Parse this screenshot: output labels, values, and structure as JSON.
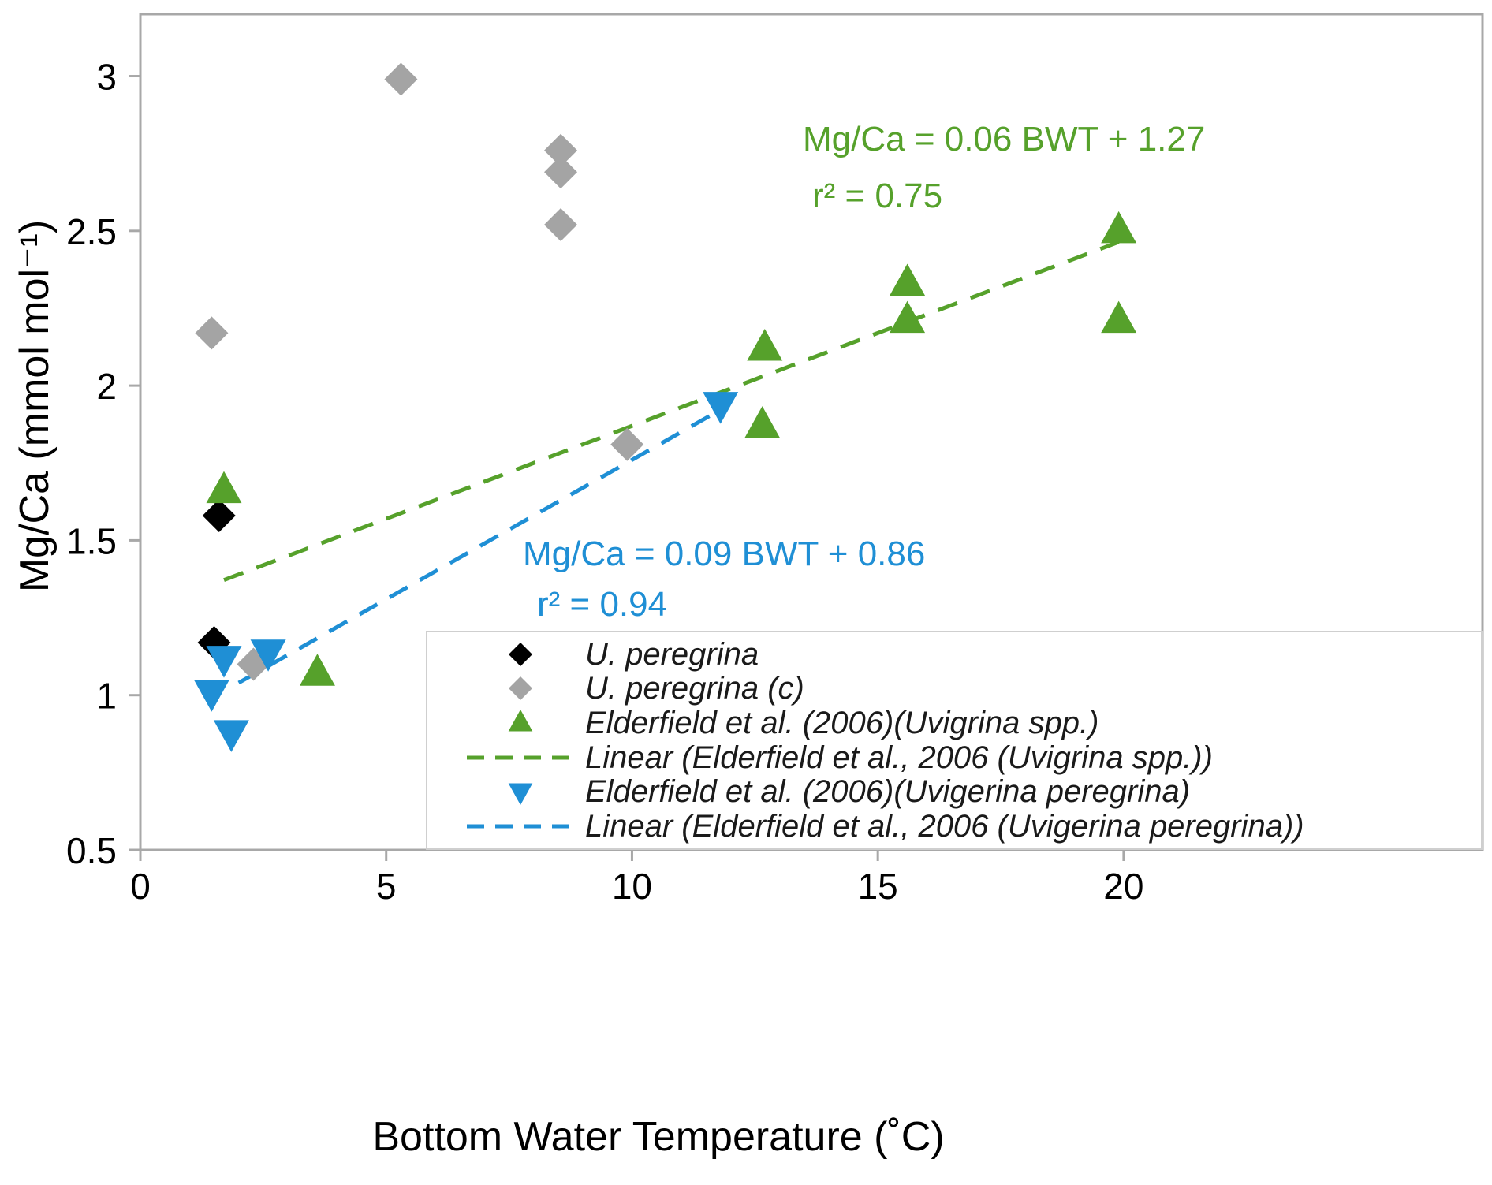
{
  "figure": {
    "background": "#ffffff",
    "axis_color": "#a8a8a8"
  },
  "chart_data": {
    "type": "scatter",
    "title": "",
    "xlabel": "Bottom Water Temperature (˚C)",
    "ylabel": "Mg/Ca (mmol mol⁻¹)",
    "xlim": [
      0,
      27.3
    ],
    "ylim": [
      0.5,
      3.2
    ],
    "xticks": [
      0,
      5,
      10,
      15,
      20
    ],
    "yticks": [
      0.5,
      1,
      1.5,
      2,
      2.5,
      3
    ],
    "grid": false,
    "legend_position": "inside-bottom-right",
    "series": [
      {
        "name": "U. peregrina",
        "marker": "diamond",
        "color": "#000000",
        "points": [
          [
            1.6,
            1.58
          ],
          [
            1.5,
            1.17
          ]
        ]
      },
      {
        "name": "U. peregrina (c)",
        "marker": "diamond",
        "color": "#a4a4a4",
        "points": [
          [
            1.45,
            2.17
          ],
          [
            2.3,
            1.1
          ],
          [
            5.3,
            2.99
          ],
          [
            8.55,
            2.76
          ],
          [
            8.55,
            2.69
          ],
          [
            8.55,
            2.52
          ],
          [
            9.9,
            1.81
          ]
        ]
      },
      {
        "name": "Elderfield et al. (2006)(Uvigrina spp.)",
        "marker": "triangle-up",
        "color": "#56a12b",
        "points": [
          [
            1.7,
            1.66
          ],
          [
            3.6,
            1.07
          ],
          [
            12.7,
            2.12
          ],
          [
            12.65,
            1.87
          ],
          [
            15.6,
            2.33
          ],
          [
            15.6,
            2.21
          ],
          [
            19.9,
            2.5
          ],
          [
            19.9,
            2.21
          ]
        ]
      },
      {
        "name": "Linear (Elderfield et al., 2006 (Uvigrina spp.))",
        "marker": "dashed-line",
        "color": "#56a12b",
        "trend": {
          "slope": 0.06,
          "intercept": 1.27,
          "x_start": 1.7,
          "x_end": 19.9,
          "r2": 0.75
        }
      },
      {
        "name": "Elderfield et al. (2006)(Uvigerina peregrina)",
        "marker": "triangle-down",
        "color": "#1f8fd5",
        "points": [
          [
            1.45,
            1.01
          ],
          [
            1.7,
            1.12
          ],
          [
            1.85,
            0.88
          ],
          [
            2.6,
            1.14
          ],
          [
            11.8,
            1.94
          ]
        ]
      },
      {
        "name": "Linear (Elderfield et al., 2006 (Uvigerina peregrina))",
        "marker": "dashed-line",
        "color": "#1f8fd5",
        "trend": {
          "slope": 0.09,
          "intercept": 0.86,
          "x_start": 2.0,
          "x_end": 11.9,
          "r2": 0.94
        }
      }
    ],
    "annotations": {
      "green_eq": {
        "text": "Mg/Ca = 0.06 BWT + 1.27",
        "color": "#56a12b"
      },
      "green_r2": {
        "text": "r² = 0.75",
        "color": "#56a12b"
      },
      "blue_eq": {
        "text": "Mg/Ca = 0.09 BWT + 0.86",
        "color": "#1f8fd5"
      },
      "blue_r2": {
        "text": "r² = 0.94",
        "color": "#1f8fd5"
      }
    }
  }
}
